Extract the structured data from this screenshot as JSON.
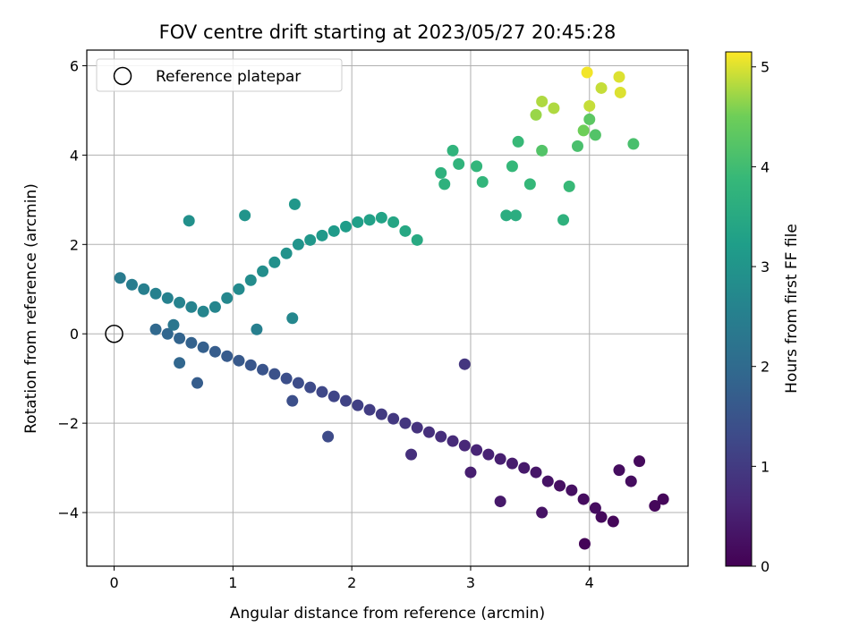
{
  "chart_data": {
    "type": "scatter",
    "title": "FOV centre drift starting at 2023/05/27 20:45:28",
    "xlabel": "Angular distance from reference (arcmin)",
    "ylabel": "Rotation from reference (arcmin)",
    "xlim": [
      -0.23,
      4.83
    ],
    "ylim": [
      -5.2,
      6.35
    ],
    "x_ticks": [
      "0",
      "1",
      "2",
      "3",
      "4"
    ],
    "x_tick_values": [
      0,
      1,
      2,
      3,
      4
    ],
    "y_ticks": [
      "−4",
      "−2",
      "0",
      "2",
      "4",
      "6"
    ],
    "y_tick_values": [
      -4,
      -2,
      0,
      2,
      4,
      6
    ],
    "grid": true,
    "legend": {
      "position": "top-left",
      "entries": [
        "Reference platepar"
      ]
    },
    "reference_point": {
      "x": 0,
      "y": 0,
      "label": "Reference platepar"
    },
    "colorbar": {
      "label": "Hours from first FF file",
      "range": [
        0,
        5.15
      ],
      "ticks": [
        "0",
        "1",
        "2",
        "3",
        "4",
        "5"
      ],
      "tick_values": [
        0,
        1,
        2,
        3,
        4,
        5
      ],
      "colormap": "viridis"
    },
    "points": [
      {
        "x": 3.96,
        "y": -4.7,
        "h": 0.05
      },
      {
        "x": 4.55,
        "y": -3.85,
        "h": 0.1
      },
      {
        "x": 4.62,
        "y": -3.7,
        "h": 0.1
      },
      {
        "x": 4.42,
        "y": -2.85,
        "h": 0.15
      },
      {
        "x": 4.35,
        "y": -3.3,
        "h": 0.2
      },
      {
        "x": 4.2,
        "y": -4.2,
        "h": 0.1
      },
      {
        "x": 4.1,
        "y": -4.1,
        "h": 0.15
      },
      {
        "x": 4.05,
        "y": -3.9,
        "h": 0.2
      },
      {
        "x": 3.95,
        "y": -3.7,
        "h": 0.2
      },
      {
        "x": 3.85,
        "y": -3.5,
        "h": 0.25
      },
      {
        "x": 3.75,
        "y": -3.4,
        "h": 0.25
      },
      {
        "x": 3.65,
        "y": -3.3,
        "h": 0.3
      },
      {
        "x": 3.55,
        "y": -3.1,
        "h": 0.35
      },
      {
        "x": 3.45,
        "y": -3.0,
        "h": 0.4
      },
      {
        "x": 3.35,
        "y": -2.9,
        "h": 0.45
      },
      {
        "x": 3.25,
        "y": -2.8,
        "h": 0.5
      },
      {
        "x": 3.15,
        "y": -2.7,
        "h": 0.55
      },
      {
        "x": 3.05,
        "y": -2.6,
        "h": 0.6
      },
      {
        "x": 2.95,
        "y": -2.5,
        "h": 0.65
      },
      {
        "x": 2.85,
        "y": -2.4,
        "h": 0.7
      },
      {
        "x": 2.75,
        "y": -2.3,
        "h": 0.75
      },
      {
        "x": 2.65,
        "y": -2.2,
        "h": 0.8
      },
      {
        "x": 2.55,
        "y": -2.1,
        "h": 0.85
      },
      {
        "x": 2.45,
        "y": -2.0,
        "h": 0.9
      },
      {
        "x": 2.35,
        "y": -1.9,
        "h": 0.95
      },
      {
        "x": 2.25,
        "y": -1.8,
        "h": 1.0
      },
      {
        "x": 2.15,
        "y": -1.7,
        "h": 1.05
      },
      {
        "x": 2.05,
        "y": -1.6,
        "h": 1.1
      },
      {
        "x": 1.95,
        "y": -1.5,
        "h": 1.15
      },
      {
        "x": 1.85,
        "y": -1.4,
        "h": 1.2
      },
      {
        "x": 1.75,
        "y": -1.3,
        "h": 1.25
      },
      {
        "x": 1.65,
        "y": -1.2,
        "h": 1.3
      },
      {
        "x": 1.55,
        "y": -1.1,
        "h": 1.35
      },
      {
        "x": 1.45,
        "y": -1.0,
        "h": 1.4
      },
      {
        "x": 1.35,
        "y": -0.9,
        "h": 1.45
      },
      {
        "x": 1.25,
        "y": -0.8,
        "h": 1.5
      },
      {
        "x": 1.15,
        "y": -0.7,
        "h": 1.55
      },
      {
        "x": 1.05,
        "y": -0.6,
        "h": 1.6
      },
      {
        "x": 0.95,
        "y": -0.5,
        "h": 1.65
      },
      {
        "x": 0.85,
        "y": -0.4,
        "h": 1.7
      },
      {
        "x": 0.75,
        "y": -0.3,
        "h": 1.75
      },
      {
        "x": 0.65,
        "y": -0.2,
        "h": 1.8
      },
      {
        "x": 0.55,
        "y": -0.1,
        "h": 1.85
      },
      {
        "x": 0.45,
        "y": 0.0,
        "h": 1.9
      },
      {
        "x": 0.35,
        "y": 0.1,
        "h": 1.95
      },
      {
        "x": 1.8,
        "y": -2.3,
        "h": 1.3
      },
      {
        "x": 2.95,
        "y": -0.68,
        "h": 0.9
      },
      {
        "x": 3.0,
        "y": -3.1,
        "h": 0.5
      },
      {
        "x": 3.6,
        "y": -4.0,
        "h": 0.3
      },
      {
        "x": 4.25,
        "y": -3.05,
        "h": 0.2
      },
      {
        "x": 3.25,
        "y": -3.75,
        "h": 0.4
      },
      {
        "x": 0.55,
        "y": -0.65,
        "h": 1.9
      },
      {
        "x": 0.7,
        "y": -1.1,
        "h": 1.7
      },
      {
        "x": 1.5,
        "y": -1.5,
        "h": 1.4
      },
      {
        "x": 2.5,
        "y": -2.7,
        "h": 0.8
      },
      {
        "x": 0.05,
        "y": 1.25,
        "h": 2.4
      },
      {
        "x": 0.15,
        "y": 1.1,
        "h": 2.45
      },
      {
        "x": 0.25,
        "y": 1.0,
        "h": 2.5
      },
      {
        "x": 0.35,
        "y": 0.9,
        "h": 2.55
      },
      {
        "x": 0.45,
        "y": 0.8,
        "h": 2.55
      },
      {
        "x": 0.55,
        "y": 0.7,
        "h": 2.6
      },
      {
        "x": 0.65,
        "y": 0.6,
        "h": 2.6
      },
      {
        "x": 0.75,
        "y": 0.5,
        "h": 2.65
      },
      {
        "x": 0.85,
        "y": 0.6,
        "h": 2.65
      },
      {
        "x": 0.95,
        "y": 0.8,
        "h": 2.7
      },
      {
        "x": 1.05,
        "y": 1.0,
        "h": 2.75
      },
      {
        "x": 1.15,
        "y": 1.2,
        "h": 2.8
      },
      {
        "x": 1.25,
        "y": 1.4,
        "h": 2.85
      },
      {
        "x": 1.35,
        "y": 1.6,
        "h": 2.9
      },
      {
        "x": 1.45,
        "y": 1.8,
        "h": 2.95
      },
      {
        "x": 1.55,
        "y": 2.0,
        "h": 3.0
      },
      {
        "x": 1.65,
        "y": 2.1,
        "h": 3.05
      },
      {
        "x": 1.75,
        "y": 2.2,
        "h": 3.1
      },
      {
        "x": 1.85,
        "y": 2.3,
        "h": 3.15
      },
      {
        "x": 1.95,
        "y": 2.4,
        "h": 3.2
      },
      {
        "x": 2.05,
        "y": 2.5,
        "h": 3.25
      },
      {
        "x": 2.15,
        "y": 2.55,
        "h": 3.3
      },
      {
        "x": 2.25,
        "y": 2.6,
        "h": 3.35
      },
      {
        "x": 2.35,
        "y": 2.5,
        "h": 3.4
      },
      {
        "x": 2.45,
        "y": 2.3,
        "h": 3.45
      },
      {
        "x": 2.55,
        "y": 2.1,
        "h": 3.5
      },
      {
        "x": 0.63,
        "y": 2.53,
        "h": 2.9
      },
      {
        "x": 1.52,
        "y": 2.9,
        "h": 3.05
      },
      {
        "x": 1.1,
        "y": 2.65,
        "h": 3.0
      },
      {
        "x": 1.2,
        "y": 0.1,
        "h": 2.5
      },
      {
        "x": 1.5,
        "y": 0.35,
        "h": 2.7
      },
      {
        "x": 0.5,
        "y": 0.2,
        "h": 2.3
      },
      {
        "x": 2.75,
        "y": 3.6,
        "h": 3.7
      },
      {
        "x": 2.78,
        "y": 3.35,
        "h": 3.7
      },
      {
        "x": 2.85,
        "y": 4.1,
        "h": 3.75
      },
      {
        "x": 2.9,
        "y": 3.8,
        "h": 3.75
      },
      {
        "x": 3.05,
        "y": 3.75,
        "h": 3.8
      },
      {
        "x": 3.1,
        "y": 3.4,
        "h": 3.8
      },
      {
        "x": 3.35,
        "y": 3.75,
        "h": 3.85
      },
      {
        "x": 3.4,
        "y": 4.3,
        "h": 3.9
      },
      {
        "x": 3.5,
        "y": 3.35,
        "h": 3.85
      },
      {
        "x": 3.3,
        "y": 2.65,
        "h": 3.6
      },
      {
        "x": 3.38,
        "y": 2.65,
        "h": 3.6
      },
      {
        "x": 3.78,
        "y": 2.55,
        "h": 3.7
      },
      {
        "x": 3.83,
        "y": 3.3,
        "h": 3.9
      },
      {
        "x": 3.6,
        "y": 4.1,
        "h": 4.2
      },
      {
        "x": 3.9,
        "y": 4.2,
        "h": 4.1
      },
      {
        "x": 4.0,
        "y": 4.8,
        "h": 4.3
      },
      {
        "x": 4.05,
        "y": 4.45,
        "h": 4.2
      },
      {
        "x": 4.37,
        "y": 4.25,
        "h": 4.1
      },
      {
        "x": 3.55,
        "y": 4.9,
        "h": 4.7
      },
      {
        "x": 3.6,
        "y": 5.2,
        "h": 4.8
      },
      {
        "x": 3.7,
        "y": 5.05,
        "h": 4.8
      },
      {
        "x": 3.98,
        "y": 5.85,
        "h": 5.1
      },
      {
        "x": 4.0,
        "y": 5.1,
        "h": 4.9
      },
      {
        "x": 4.1,
        "y": 5.5,
        "h": 4.9
      },
      {
        "x": 4.25,
        "y": 5.75,
        "h": 5.0
      },
      {
        "x": 4.26,
        "y": 5.4,
        "h": 5.0
      },
      {
        "x": 3.95,
        "y": 4.55,
        "h": 4.5
      }
    ]
  }
}
